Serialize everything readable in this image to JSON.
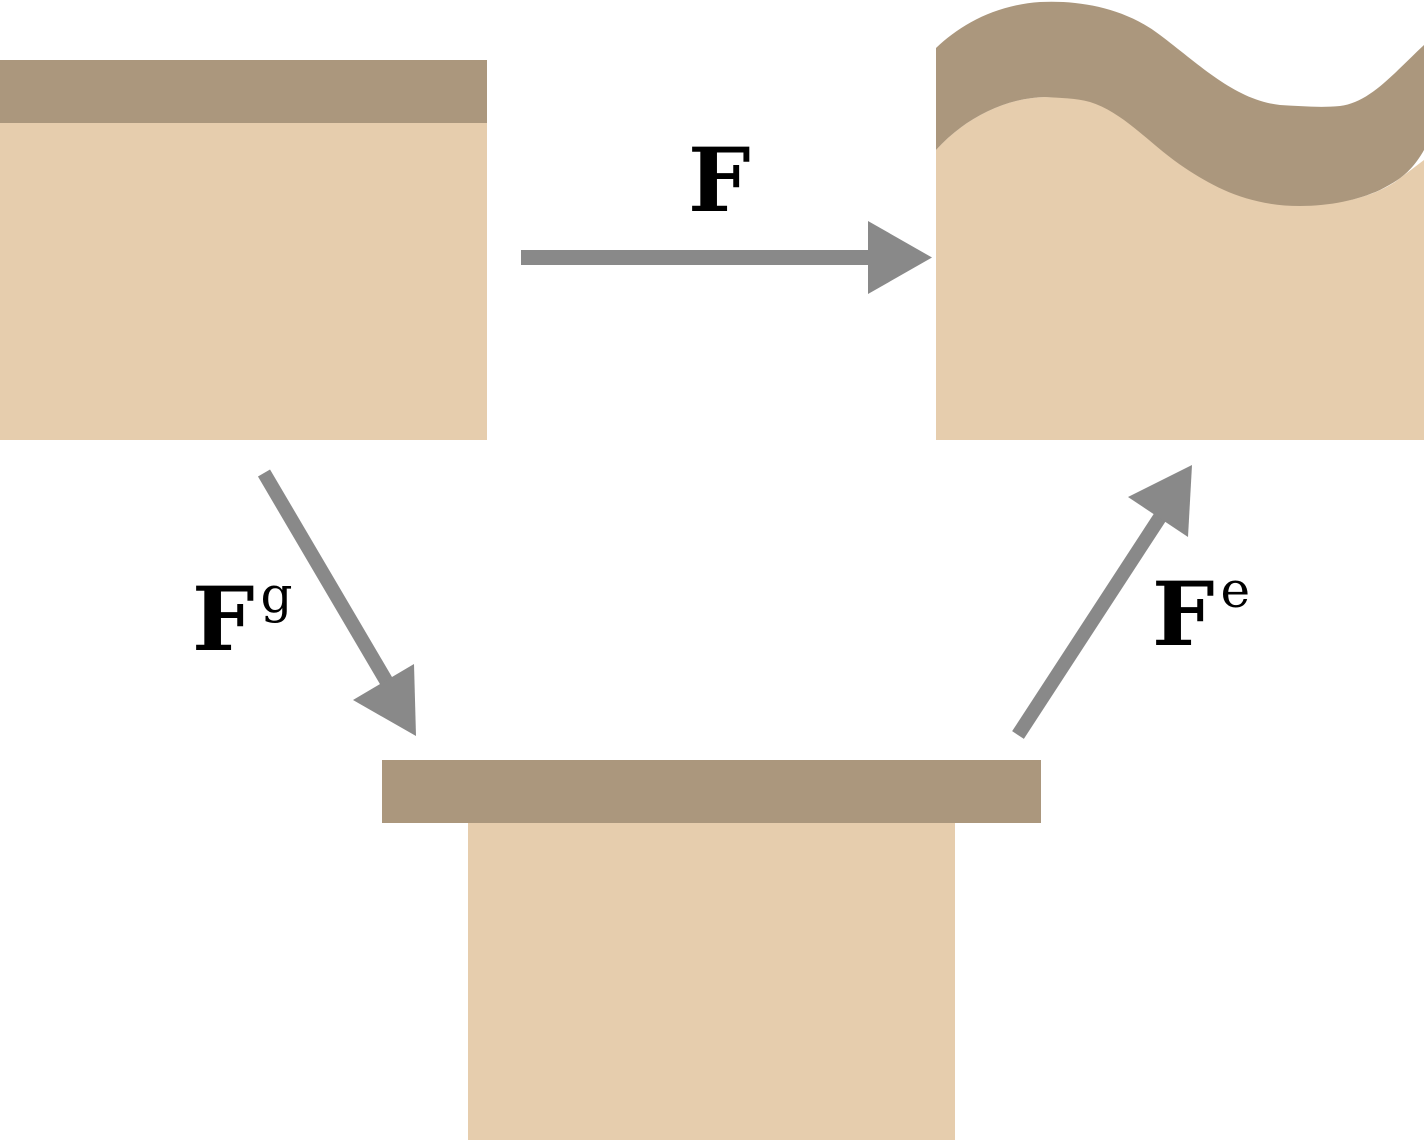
{
  "colors": {
    "substrate": "#e6cdad",
    "film": "#ab977d",
    "arrow": "#898989",
    "text": "#000000",
    "background": "#ffffff"
  },
  "labels": {
    "total_deformation": {
      "main": "F",
      "superscript": ""
    },
    "growth_deformation": {
      "main": "F",
      "superscript": "g"
    },
    "elastic_deformation": {
      "main": "F",
      "superscript": "e"
    }
  }
}
